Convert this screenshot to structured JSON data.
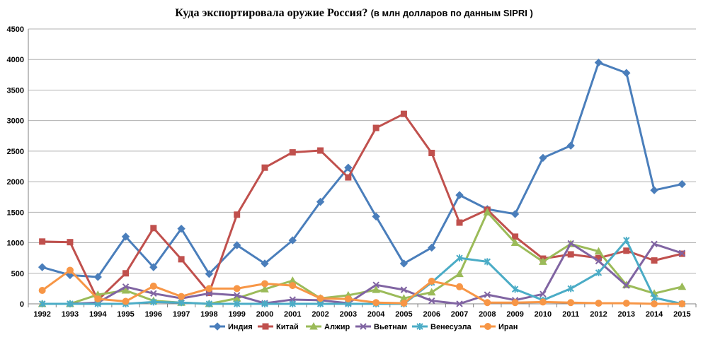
{
  "chart_data": {
    "type": "line",
    "title": "Куда экспортировала оружие Россия?",
    "subtitle": "(в млн долларов по данным SIPRI )",
    "categories": [
      "1992",
      "1993",
      "1994",
      "1995",
      "1996",
      "1997",
      "1998",
      "1999",
      "2000",
      "2001",
      "2002",
      "2003",
      "2004",
      "2005",
      "2006",
      "2007",
      "2008",
      "2009",
      "2010",
      "2011",
      "2012",
      "2013",
      "2014",
      "2015"
    ],
    "ylim": [
      0,
      4500
    ],
    "yticks": [
      0,
      500,
      1000,
      1500,
      2000,
      2500,
      3000,
      3500,
      4000,
      4500
    ],
    "grid": true,
    "legend_position": "bottom",
    "series": [
      {
        "name": "Индия",
        "color": "#4a7ebb",
        "marker": "diamond",
        "values": [
          600,
          470,
          440,
          1100,
          600,
          1230,
          490,
          960,
          660,
          1040,
          1670,
          2230,
          1430,
          660,
          920,
          1780,
          1550,
          1470,
          2390,
          2590,
          3950,
          3780,
          1860,
          1960
        ]
      },
      {
        "name": "Китай",
        "color": "#c0504d",
        "marker": "square",
        "values": [
          1020,
          1010,
          60,
          500,
          1240,
          730,
          180,
          1460,
          2230,
          2480,
          2510,
          2070,
          2880,
          3110,
          2470,
          1330,
          1540,
          1100,
          740,
          810,
          750,
          870,
          710,
          820
        ]
      },
      {
        "name": "Алжир",
        "color": "#9bbb59",
        "marker": "triangle",
        "values": [
          0,
          0,
          150,
          220,
          50,
          20,
          0,
          90,
          240,
          380,
          90,
          140,
          230,
          90,
          190,
          490,
          1500,
          1000,
          690,
          980,
          860,
          310,
          170,
          280
        ]
      },
      {
        "name": "Вьетнам",
        "color": "#8064a2",
        "marker": "x",
        "values": [
          0,
          0,
          20,
          280,
          170,
          90,
          170,
          140,
          10,
          70,
          60,
          10,
          310,
          230,
          50,
          0,
          150,
          60,
          160,
          990,
          700,
          300,
          980,
          830
        ]
      },
      {
        "name": "Венесуэла",
        "color": "#4bacc6",
        "marker": "star",
        "values": [
          0,
          0,
          0,
          0,
          30,
          20,
          0,
          0,
          0,
          0,
          0,
          0,
          0,
          0,
          350,
          750,
          690,
          240,
          60,
          250,
          510,
          1040,
          100,
          0
        ]
      },
      {
        "name": "Иран",
        "color": "#f79646",
        "marker": "circle",
        "values": [
          220,
          550,
          80,
          40,
          290,
          120,
          250,
          250,
          330,
          300,
          90,
          80,
          20,
          10,
          370,
          280,
          20,
          20,
          30,
          20,
          10,
          10,
          0,
          0
        ]
      }
    ]
  }
}
